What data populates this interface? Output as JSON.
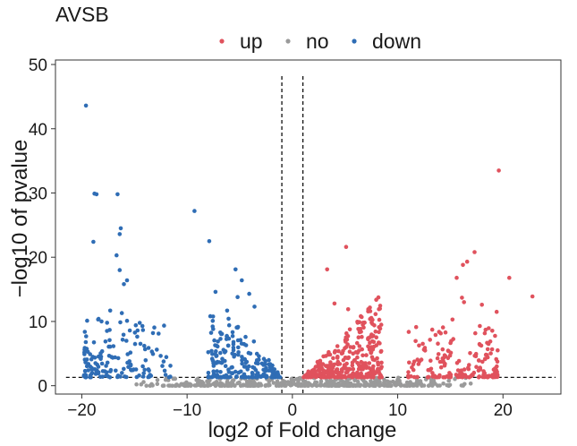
{
  "chart_data": {
    "type": "scatter",
    "title": "AVSB",
    "xlabel": "log2 of Fold change",
    "ylabel": "−log10 of pvalue",
    "xlim": [
      -22.5,
      25.5
    ],
    "ylim": [
      -1.3,
      50.7
    ],
    "xticks": [
      -20,
      -10,
      0,
      10,
      20
    ],
    "yticks": [
      0,
      10,
      20,
      30,
      40,
      50
    ],
    "grid": false,
    "legend": {
      "placement": "top",
      "entries": [
        "up",
        "no",
        "down"
      ]
    },
    "colors": {
      "up": "#e0525d",
      "no": "#9a9a9a",
      "down": "#2f6db5"
    },
    "thresholds": {
      "log2fc": [
        -1,
        1
      ],
      "neg_log10_p": 1.3
    },
    "series": [
      {
        "name": "down",
        "color": "#2f6db5",
        "points": [
          [
            -19.6,
            43.6
          ],
          [
            -18.8,
            29.9
          ],
          [
            -18.6,
            29.8
          ],
          [
            -16.6,
            29.8
          ],
          [
            -9.3,
            27.2
          ],
          [
            -16.3,
            24.5
          ],
          [
            -16.4,
            23.6
          ],
          [
            -18.9,
            22.4
          ],
          [
            -7.9,
            22.5
          ],
          [
            -16.7,
            20.3
          ],
          [
            -16.4,
            18.0
          ],
          [
            -15.7,
            16.4
          ],
          [
            -16.0,
            15.8
          ],
          [
            -5.4,
            18.1
          ],
          [
            -4.8,
            16.4
          ],
          [
            -17.3,
            11.7
          ],
          [
            -16.2,
            11.3
          ],
          [
            -17.6,
            9.8
          ],
          [
            -7.3,
            14.6
          ],
          [
            -5.2,
            13.8
          ],
          [
            -6.2,
            11.7
          ],
          [
            -4.1,
            14.3
          ],
          [
            -3.6,
            12.3
          ],
          [
            -14.7,
            8.6
          ],
          [
            -15.7,
            10.1
          ]
        ]
      },
      {
        "name": "up",
        "color": "#e0525d",
        "points": [
          [
            19.6,
            33.5
          ],
          [
            5.1,
            21.6
          ],
          [
            17.3,
            20.8
          ],
          [
            16.2,
            18.8
          ],
          [
            16.6,
            19.3
          ],
          [
            3.3,
            18.1
          ],
          [
            15.6,
            16.8
          ],
          [
            20.6,
            16.8
          ],
          [
            22.8,
            13.9
          ],
          [
            19.4,
            11.5
          ],
          [
            7.4,
            11.6
          ],
          [
            5.3,
            11.9
          ],
          [
            18.0,
            12.6
          ],
          [
            16.1,
            13.7
          ],
          [
            16.3,
            13.0
          ],
          [
            4.0,
            12.8
          ],
          [
            15.2,
            10.3
          ],
          [
            17.8,
            9.3
          ],
          [
            6.2,
            9.8
          ],
          [
            13.6,
            7.9
          ]
        ]
      }
    ],
    "generated_groups": [
      {
        "name": "down",
        "n": 150,
        "x": [
          -19.8,
          -11.5
        ],
        "y": [
          1.3,
          10.5
        ],
        "seed": 11,
        "shape": "left"
      },
      {
        "name": "down",
        "n": 200,
        "x": [
          -8.0,
          -1.0
        ],
        "y": [
          1.3,
          11.0
        ],
        "seed": 23,
        "shape": "wedgeNeg"
      },
      {
        "name": "up",
        "n": 340,
        "x": [
          1.0,
          8.5
        ],
        "y": [
          1.3,
          14.5
        ],
        "seed": 37,
        "shape": "wedgePos"
      },
      {
        "name": "up",
        "n": 170,
        "x": [
          11.0,
          19.5
        ],
        "y": [
          1.3,
          9.5
        ],
        "seed": 53,
        "shape": "right"
      },
      {
        "name": "no",
        "n": 420,
        "x": [
          -16.0,
          18.0
        ],
        "y": [
          0.0,
          1.25
        ],
        "seed": 71,
        "shape": "flat"
      }
    ]
  }
}
